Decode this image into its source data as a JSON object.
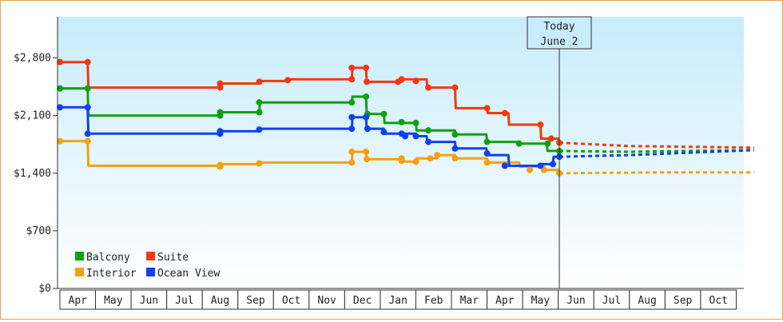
{
  "chart_data": {
    "type": "line",
    "title": "",
    "xlabel": "",
    "ylabel": "",
    "y_ticks": [
      "$0",
      "$700",
      "$1,400",
      "$2,100",
      "$2,800"
    ],
    "ylim": [
      0,
      3300
    ],
    "months": [
      "Apr",
      "May",
      "Jun",
      "Jul",
      "Aug",
      "Sep",
      "Oct",
      "Nov",
      "Dec",
      "Jan",
      "Feb",
      "Mar",
      "Apr",
      "May",
      "Jun",
      "Jul",
      "Aug",
      "Sep",
      "Oct"
    ],
    "today_label": "Today",
    "today_date": "June 2",
    "today_x": 14.03,
    "x_unit": "months from start of first April",
    "grid": false,
    "legend_position": "bottom-left",
    "series": [
      {
        "name": "Balcony",
        "color": "#11a011",
        "points": [
          [
            0,
            2430
          ],
          [
            0.78,
            2430
          ],
          [
            0.8,
            2100
          ],
          [
            4.5,
            2100
          ],
          [
            4.52,
            2140
          ],
          [
            5.6,
            2140
          ],
          [
            5.62,
            2260
          ],
          [
            8.2,
            2260
          ],
          [
            8.22,
            2330
          ],
          [
            8.6,
            2330
          ],
          [
            8.62,
            2120
          ],
          [
            9.1,
            2120
          ],
          [
            9.12,
            2010
          ],
          [
            10,
            2010
          ],
          [
            10.02,
            1920
          ],
          [
            11.1,
            1920
          ],
          [
            11.12,
            1870
          ],
          [
            11.98,
            1870
          ],
          [
            12,
            1780
          ],
          [
            12.9,
            1780
          ],
          [
            12.92,
            1760
          ],
          [
            13.68,
            1760
          ],
          [
            13.7,
            1670
          ],
          [
            14.03,
            1670
          ]
        ],
        "markers": [
          [
            0,
            2430
          ],
          [
            0.78,
            2430
          ],
          [
            4.5,
            2100
          ],
          [
            4.5,
            2140
          ],
          [
            5.6,
            2140
          ],
          [
            5.6,
            2260
          ],
          [
            8.2,
            2260
          ],
          [
            8.6,
            2330
          ],
          [
            8.64,
            2120
          ],
          [
            9.1,
            2120
          ],
          [
            9.6,
            2020
          ],
          [
            10,
            2010
          ],
          [
            10.35,
            1920
          ],
          [
            11.1,
            1870
          ],
          [
            12,
            1780
          ],
          [
            12.9,
            1760
          ],
          [
            13.7,
            1760
          ],
          [
            14.03,
            1670
          ]
        ],
        "projection": [
          [
            14.03,
            1670
          ],
          [
            16,
            1660
          ],
          [
            19.5,
            1680
          ]
        ]
      },
      {
        "name": "Suite",
        "color": "#f03a10",
        "points": [
          [
            0,
            2750
          ],
          [
            0.78,
            2750
          ],
          [
            0.8,
            2440
          ],
          [
            4.5,
            2440
          ],
          [
            4.52,
            2490
          ],
          [
            5.6,
            2490
          ],
          [
            5.62,
            2520
          ],
          [
            6.4,
            2520
          ],
          [
            6.42,
            2540
          ],
          [
            8.2,
            2540
          ],
          [
            8.22,
            2680
          ],
          [
            8.6,
            2680
          ],
          [
            8.62,
            2510
          ],
          [
            9.6,
            2510
          ],
          [
            9.62,
            2540
          ],
          [
            10.3,
            2540
          ],
          [
            10.32,
            2440
          ],
          [
            11.1,
            2440
          ],
          [
            11.12,
            2190
          ],
          [
            12,
            2190
          ],
          [
            12.02,
            2130
          ],
          [
            12.6,
            2130
          ],
          [
            12.62,
            1990
          ],
          [
            13.5,
            1990
          ],
          [
            13.52,
            1820
          ],
          [
            14.03,
            1820
          ]
        ],
        "markers": [
          [
            0,
            2750
          ],
          [
            0.78,
            2750
          ],
          [
            4.5,
            2440
          ],
          [
            4.5,
            2490
          ],
          [
            5.6,
            2510
          ],
          [
            6.4,
            2530
          ],
          [
            8.2,
            2540
          ],
          [
            8.2,
            2680
          ],
          [
            8.6,
            2680
          ],
          [
            8.62,
            2510
          ],
          [
            9.5,
            2510
          ],
          [
            9.6,
            2540
          ],
          [
            10,
            2520
          ],
          [
            10.35,
            2440
          ],
          [
            11.1,
            2440
          ],
          [
            12,
            2190
          ],
          [
            12.5,
            2130
          ],
          [
            13.5,
            1990
          ],
          [
            13.8,
            1820
          ],
          [
            14.03,
            1770
          ]
        ],
        "projection": [
          [
            14.03,
            1770
          ],
          [
            16,
            1730
          ],
          [
            19.5,
            1710
          ]
        ]
      },
      {
        "name": "Interior",
        "color": "#f5a010",
        "points": [
          [
            0,
            1790
          ],
          [
            0.78,
            1790
          ],
          [
            0.8,
            1490
          ],
          [
            4.5,
            1490
          ],
          [
            4.52,
            1510
          ],
          [
            5.6,
            1510
          ],
          [
            5.62,
            1530
          ],
          [
            8.2,
            1530
          ],
          [
            8.22,
            1660
          ],
          [
            8.6,
            1660
          ],
          [
            8.62,
            1570
          ],
          [
            9.6,
            1570
          ],
          [
            9.62,
            1540
          ],
          [
            10,
            1540
          ],
          [
            10.02,
            1580
          ],
          [
            10.6,
            1580
          ],
          [
            10.62,
            1620
          ],
          [
            11.1,
            1620
          ],
          [
            11.12,
            1580
          ],
          [
            12,
            1580
          ],
          [
            12.02,
            1530
          ],
          [
            12.9,
            1530
          ],
          [
            12.92,
            1480
          ],
          [
            13.6,
            1480
          ],
          [
            13.62,
            1440
          ],
          [
            14.03,
            1440
          ]
        ],
        "markers": [
          [
            0,
            1790
          ],
          [
            0.78,
            1790
          ],
          [
            4.5,
            1480
          ],
          [
            4.5,
            1500
          ],
          [
            5.6,
            1520
          ],
          [
            8.2,
            1530
          ],
          [
            8.2,
            1660
          ],
          [
            8.6,
            1660
          ],
          [
            8.62,
            1570
          ],
          [
            9.6,
            1580
          ],
          [
            9.6,
            1550
          ],
          [
            10,
            1540
          ],
          [
            10.4,
            1580
          ],
          [
            10.6,
            1620
          ],
          [
            11.1,
            1580
          ],
          [
            12,
            1530
          ],
          [
            13.2,
            1440
          ],
          [
            13.6,
            1440
          ],
          [
            14.03,
            1400
          ]
        ],
        "projection": [
          [
            14.03,
            1400
          ],
          [
            17,
            1410
          ],
          [
            19.5,
            1410
          ]
        ]
      },
      {
        "name": "Ocean View",
        "color": "#1040f0",
        "points": [
          [
            0,
            2200
          ],
          [
            0.78,
            2200
          ],
          [
            0.8,
            1880
          ],
          [
            4.5,
            1880
          ],
          [
            4.52,
            1910
          ],
          [
            5.6,
            1910
          ],
          [
            5.62,
            1940
          ],
          [
            8.2,
            1940
          ],
          [
            8.22,
            2080
          ],
          [
            8.6,
            2080
          ],
          [
            8.62,
            1940
          ],
          [
            9.1,
            1940
          ],
          [
            9.12,
            1880
          ],
          [
            10,
            1880
          ],
          [
            10.02,
            1850
          ],
          [
            10.3,
            1850
          ],
          [
            10.32,
            1780
          ],
          [
            11.1,
            1780
          ],
          [
            11.12,
            1700
          ],
          [
            11.98,
            1700
          ],
          [
            12,
            1620
          ],
          [
            12.6,
            1620
          ],
          [
            12.62,
            1490
          ],
          [
            13.5,
            1490
          ],
          [
            13.52,
            1510
          ],
          [
            13.85,
            1510
          ],
          [
            13.87,
            1600
          ],
          [
            14.03,
            1600
          ]
        ],
        "markers": [
          [
            0,
            2200
          ],
          [
            0.78,
            2200
          ],
          [
            0.78,
            1880
          ],
          [
            4.5,
            1880
          ],
          [
            4.5,
            1910
          ],
          [
            5.6,
            1930
          ],
          [
            8.2,
            1940
          ],
          [
            8.2,
            2080
          ],
          [
            8.6,
            2080
          ],
          [
            8.64,
            1940
          ],
          [
            9.1,
            1900
          ],
          [
            9.6,
            1880
          ],
          [
            9.7,
            1850
          ],
          [
            10,
            1850
          ],
          [
            10.35,
            1780
          ],
          [
            11.1,
            1700
          ],
          [
            12,
            1640
          ],
          [
            12.5,
            1490
          ],
          [
            13.5,
            1490
          ],
          [
            13.85,
            1510
          ],
          [
            14.03,
            1600
          ]
        ],
        "projection": [
          [
            14.03,
            1600
          ],
          [
            16,
            1620
          ],
          [
            19.5,
            1680
          ]
        ]
      }
    ]
  }
}
